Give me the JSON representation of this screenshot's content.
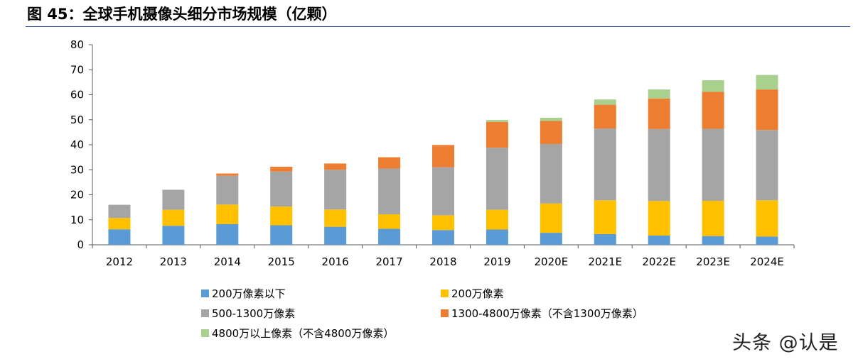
{
  "figure": {
    "title": "图 45：全球手机摄像头细分市场规模（亿颗）",
    "watermark": "头条 @认是"
  },
  "chart_data": {
    "type": "bar",
    "stacked": true,
    "title": "",
    "xlabel": "",
    "ylabel": "",
    "ylim": [
      0,
      80
    ],
    "yticks": [
      0,
      10,
      20,
      30,
      40,
      50,
      60,
      70,
      80
    ],
    "grid": false,
    "legend_position": "bottom",
    "categories": [
      "2012",
      "2013",
      "2014",
      "2015",
      "2016",
      "2017",
      "2018",
      "2019",
      "2020E",
      "2021E",
      "2022E",
      "2023E",
      "2024E"
    ],
    "series": [
      {
        "name": "200万像素以下",
        "color": "#5b9bd5",
        "values": [
          6.2,
          7.6,
          8.3,
          7.8,
          7.2,
          6.4,
          5.9,
          6.1,
          4.8,
          4.3,
          3.7,
          3.5,
          3.3
        ]
      },
      {
        "name": "200万像素",
        "color": "#ffc000",
        "values": [
          4.5,
          6.4,
          7.8,
          7.5,
          6.9,
          5.8,
          5.9,
          7.9,
          11.7,
          13.5,
          13.8,
          14.1,
          14.5
        ]
      },
      {
        "name": "500-1300万像素",
        "color": "#a5a5a5",
        "values": [
          5.3,
          8.0,
          11.5,
          14.0,
          15.9,
          18.3,
          19.2,
          24.8,
          23.8,
          28.7,
          28.8,
          28.8,
          28.1
        ]
      },
      {
        "name": "1300-4800万像素（不含1300万像素）",
        "color": "#ed7d31",
        "values": [
          0,
          0,
          0.9,
          1.9,
          2.5,
          4.5,
          8.9,
          10.3,
          9.2,
          9.5,
          12.2,
          14.8,
          16.2
        ]
      },
      {
        "name": "4800万以上像素（不含4800万像素）",
        "color": "#a9d18e",
        "values": [
          0,
          0,
          0,
          0,
          0,
          0,
          0,
          0.8,
          1.3,
          2.1,
          3.6,
          4.6,
          5.8
        ]
      }
    ]
  }
}
